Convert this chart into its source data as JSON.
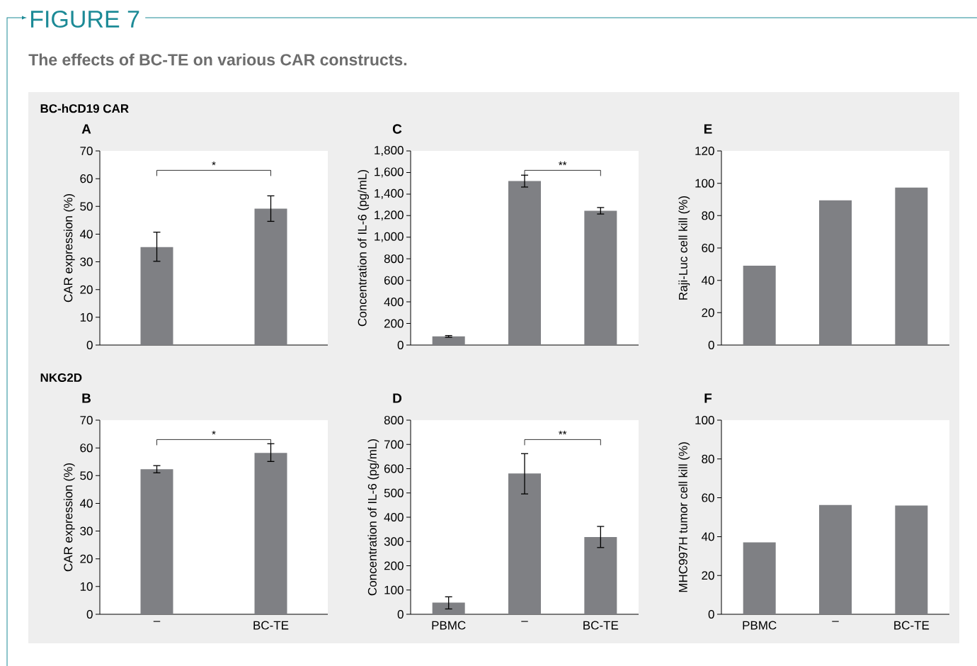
{
  "chart_data": [
    {
      "type": "other",
      "title": "FIGURE 7",
      "subtitle": "The effects of BC-TE on various CAR constructs."
    },
    {
      "type": "bar",
      "title": "A",
      "subtitle": "BC-hCD19 CAR",
      "ylabel": "CAR expression (%)",
      "categories": [
        null,
        null
      ],
      "values": [
        35.3,
        49.2
      ],
      "errors": [
        [
          30.2,
          40.7
        ],
        [
          44.6,
          53.8
        ]
      ],
      "color": "#7f8084",
      "ylim": [
        0,
        70
      ],
      "yticks": [
        0,
        10,
        20,
        30,
        40,
        50,
        60,
        70
      ],
      "annotations": [
        "*"
      ]
    },
    {
      "type": "bar",
      "title": "C",
      "ylabel": "Concentration of IL-6 (pg/mL)",
      "categories": [
        null,
        null,
        null
      ],
      "values": [
        80,
        1520,
        1245
      ],
      "errors": [
        [
          72,
          88
        ],
        [
          1465,
          1575
        ],
        [
          1215,
          1275
        ]
      ],
      "color": "#7f8084",
      "ylim": [
        0,
        1800
      ],
      "yticks": [
        0,
        200,
        400,
        600,
        800,
        {
          "value": 1000,
          "label": "1,000"
        },
        {
          "value": 1200,
          "label": "1,200"
        },
        {
          "value": 1400,
          "label": "1,400"
        },
        {
          "value": 1600,
          "label": "1,600"
        },
        {
          "value": 1800,
          "label": "1,800"
        }
      ],
      "annotations": [
        "**"
      ]
    },
    {
      "type": "bar",
      "title": "E",
      "ylabel": "Raji-Luc cell kill (%)",
      "categories": [
        null,
        null,
        null
      ],
      "values": [
        49,
        89.5,
        97.3
      ],
      "color": "#7f8084",
      "ylim": [
        0,
        120
      ],
      "yticks": [
        0,
        20,
        40,
        60,
        80,
        100,
        120
      ]
    },
    {
      "type": "bar",
      "title": "B",
      "subtitle": "NKG2D",
      "ylabel": "CAR expression (%)",
      "categories": [
        "–",
        "BC-TE"
      ],
      "values": [
        52.3,
        58.2
      ],
      "errors": [
        [
          51,
          53.6
        ],
        [
          55.1,
          61.5
        ]
      ],
      "color": "#7f8084",
      "ylim": [
        0,
        70
      ],
      "yticks": [
        0,
        10,
        20,
        30,
        40,
        50,
        60,
        70
      ],
      "annotations": [
        "*"
      ]
    },
    {
      "type": "bar",
      "title": "D",
      "ylabel": "Concentration of IL-6 (pg/mL)",
      "categories": [
        "PBMC",
        "–",
        "BC-TE"
      ],
      "values": [
        48,
        580,
        318
      ],
      "errors": [
        [
          22,
          72
        ],
        [
          496,
          662
        ],
        [
          275,
          362
        ]
      ],
      "color": "#7f8084",
      "ylim": [
        0,
        800
      ],
      "yticks": [
        0,
        100,
        200,
        300,
        400,
        500,
        600,
        700,
        800
      ],
      "annotations": [
        "**"
      ]
    },
    {
      "type": "bar",
      "title": "F",
      "ylabel": "MHC997H tumor cell kill (%)",
      "categories": [
        "PBMC",
        "–",
        "BC-TE"
      ],
      "values": [
        37,
        56.3,
        56
      ],
      "color": "#7f8084",
      "ylim": [
        0,
        100
      ],
      "yticks": [
        0,
        20,
        40,
        60,
        80,
        100
      ]
    }
  ]
}
